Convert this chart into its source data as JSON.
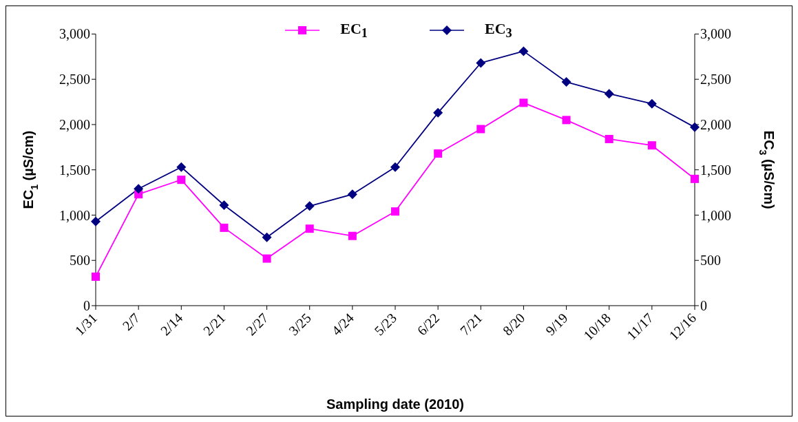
{
  "chart_data": {
    "type": "line",
    "xlabel": "Sampling date (2010)",
    "ylabel": "EC$_{1}$ (µS/cm)",
    "y2label": "EC$_{3}$ (µS/cm)",
    "categories": [
      "1/31",
      "2/7",
      "2/14",
      "2/21",
      "2/27",
      "3/25",
      "4/24",
      "5/23",
      "6/22",
      "7/21",
      "8/20",
      "9/19",
      "10/18",
      "11/17",
      "12/16"
    ],
    "series": [
      {
        "name": "EC$_{1}$",
        "color": "#ff00ff",
        "marker": "square",
        "values": [
          320,
          1230,
          1390,
          860,
          520,
          850,
          770,
          1040,
          1680,
          1950,
          2240,
          2050,
          1840,
          1770,
          1400
        ]
      },
      {
        "name": "EC$_{3}$",
        "color": "#000080",
        "marker": "diamond",
        "axis": "y2",
        "values": [
          930,
          1290,
          1530,
          1110,
          755,
          1100,
          1230,
          1530,
          2130,
          2680,
          2810,
          2470,
          2340,
          2230,
          1970
        ]
      }
    ],
    "ylim": [
      0,
      3000
    ],
    "yticks": [
      0,
      500,
      {
        "value": 1000,
        "label": "1,000"
      },
      {
        "value": 1500,
        "label": "1,500"
      },
      {
        "value": 2000,
        "label": "2,000"
      },
      {
        "value": 2500,
        "label": "2,500"
      },
      {
        "value": 3000,
        "label": "3,000"
      }
    ],
    "y2lim": [
      0,
      3000
    ],
    "y2ticks": [
      0,
      500,
      {
        "value": 1000,
        "label": "1,000"
      },
      {
        "value": 1500,
        "label": "1,500"
      },
      {
        "value": 2000,
        "label": "2,000"
      },
      {
        "value": 2500,
        "label": "2,500"
      },
      {
        "value": 3000,
        "label": "3,000"
      }
    ],
    "grid": false,
    "legend": "top",
    "line_style": "solid"
  }
}
